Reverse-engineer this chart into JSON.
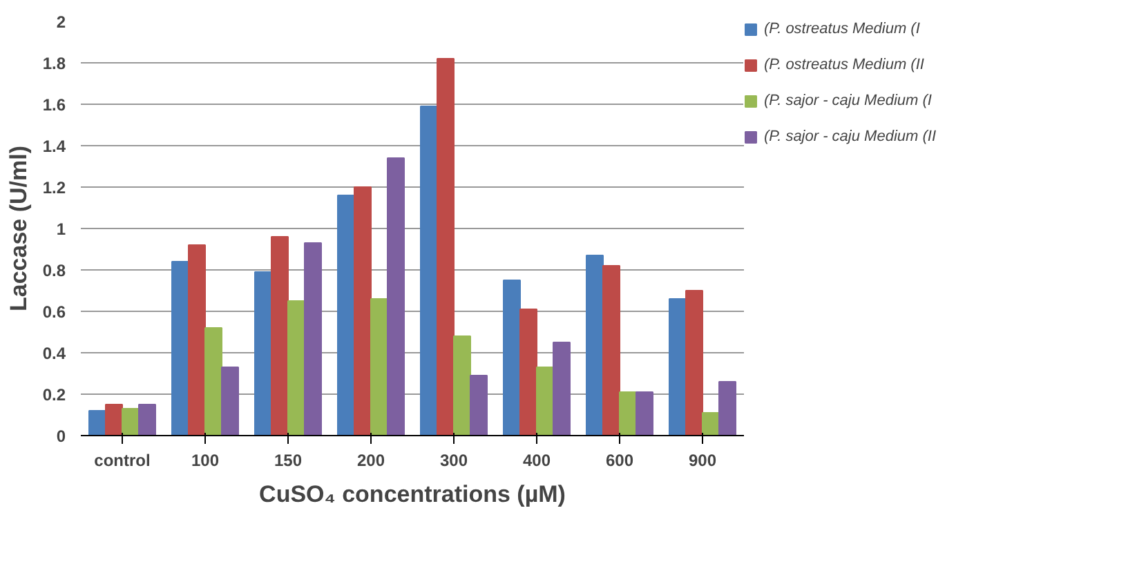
{
  "chart_data": {
    "type": "bar",
    "xlabel": "CuSO₄ concentrations (µM)",
    "ylabel": "Laccase (U/ml)",
    "categories": [
      "control",
      "100",
      "150",
      "200",
      "300",
      "400",
      "600",
      "900"
    ],
    "series": [
      {
        "name": "(P. ostreatus Medium (I",
        "color": "#4a7ebb",
        "values": [
          0.12,
          0.84,
          0.79,
          1.16,
          1.59,
          0.75,
          0.87,
          0.66
        ]
      },
      {
        "name": "(P. ostreatus Medium (II",
        "color": "#be4b48",
        "values": [
          0.15,
          0.92,
          0.96,
          1.2,
          1.82,
          0.61,
          0.82,
          0.7
        ]
      },
      {
        "name": "(P. sajor - caju Medium (I",
        "color": "#98b954",
        "values": [
          0.13,
          0.52,
          0.65,
          0.66,
          0.48,
          0.33,
          0.21,
          0.11
        ]
      },
      {
        "name": "(P. sajor - caju Medium (II",
        "color": "#7d60a0",
        "values": [
          0.15,
          0.33,
          0.93,
          1.34,
          0.29,
          0.45,
          0.21,
          0.26
        ]
      }
    ],
    "ylim": [
      0,
      2
    ],
    "yticks": [
      0,
      {
        "value": 0.2,
        "label": "0.2"
      },
      {
        "value": 0.4,
        "label": "0.4"
      },
      {
        "value": 0.6,
        "label": "0.6"
      },
      {
        "value": 0.8,
        "label": "0.8"
      },
      1,
      {
        "value": 1.2,
        "label": "1.2"
      },
      {
        "value": 1.4,
        "label": "1.4"
      },
      {
        "value": 1.6,
        "label": "1.6"
      },
      {
        "value": 1.8,
        "label": "1.8"
      },
      2
    ],
    "grid": "y",
    "legend": "right"
  }
}
